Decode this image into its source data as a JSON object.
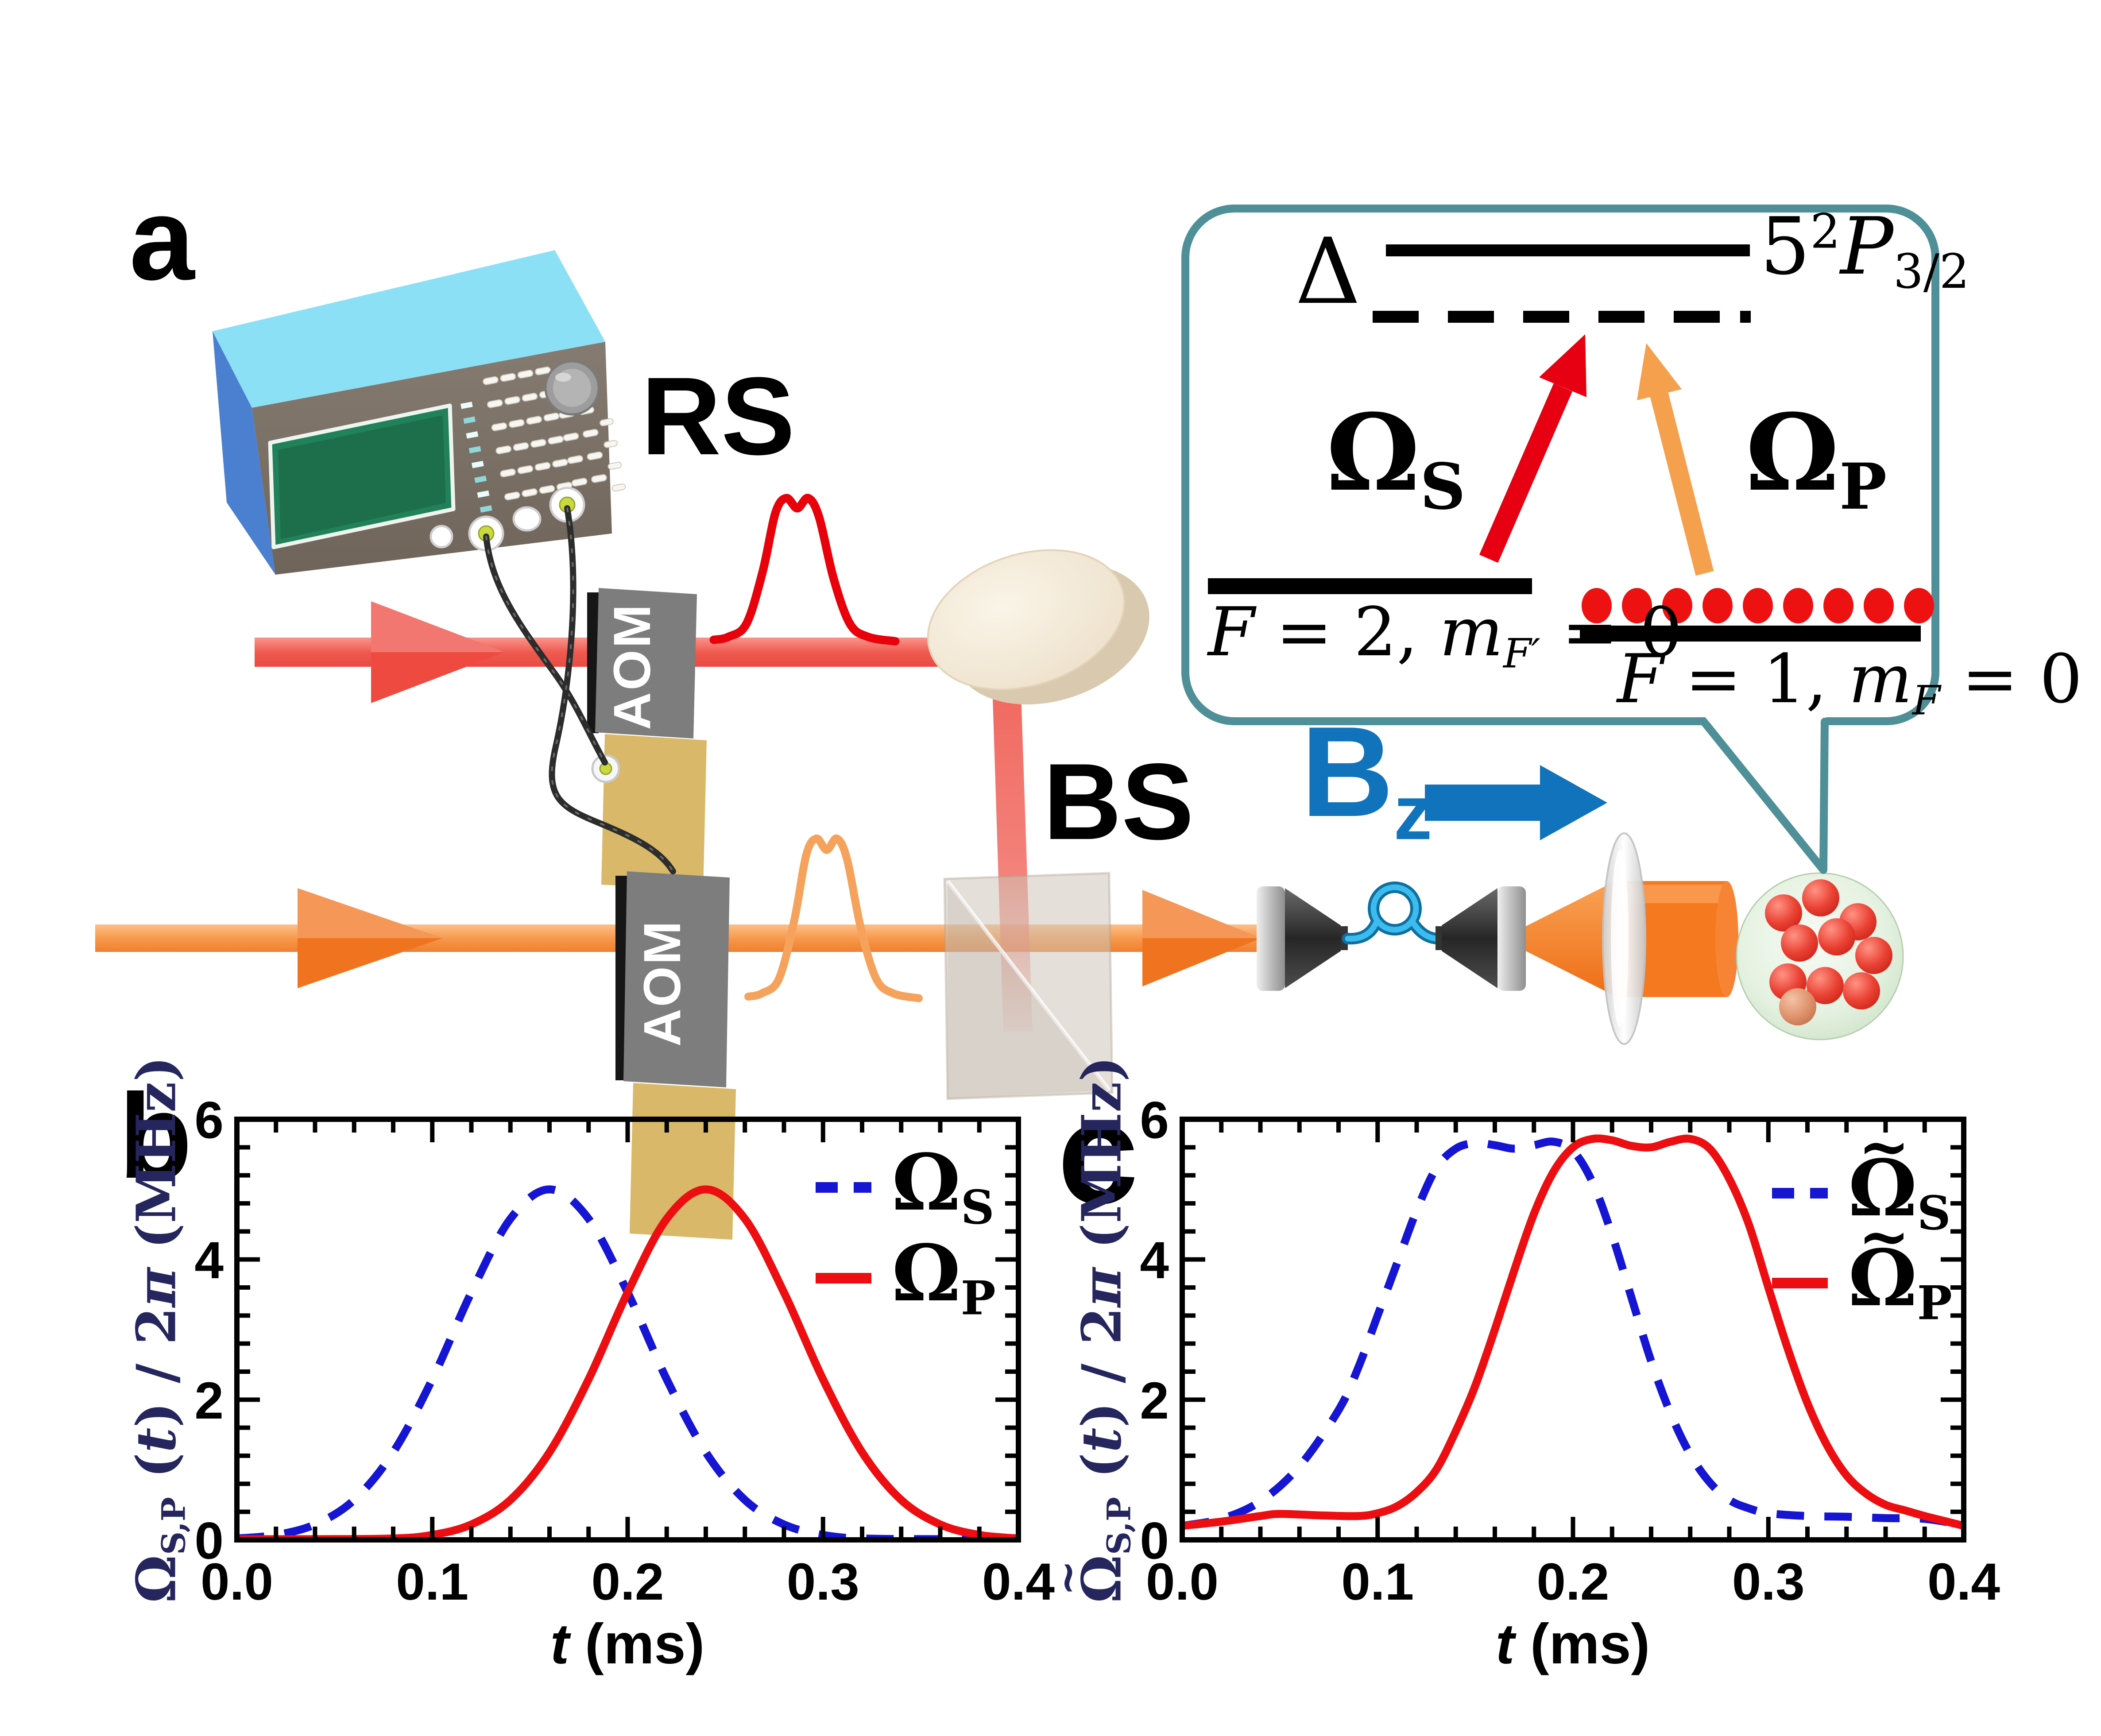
{
  "figure": {
    "panel_a_label": "a",
    "rs_label": "RS",
    "aom_label": "AOM",
    "bs_label": "BS",
    "bz_segs": [
      {
        "t": "B"
      },
      {
        "t": "z",
        "sub": 1
      }
    ],
    "inset": {
      "delta": "Δ",
      "excited_segs": [
        {
          "t": "5"
        },
        {
          "t": "2",
          "sup": 1
        },
        {
          "t": "P",
          "i": 1
        },
        {
          "t": "3/2",
          "sub": 1
        }
      ],
      "omega_s_segs": [
        {
          "t": "Ω"
        },
        {
          "t": "S",
          "sub": 1
        }
      ],
      "omega_p_segs": [
        {
          "t": "Ω"
        },
        {
          "t": "P",
          "sub": 1
        }
      ],
      "f2_segs": [
        {
          "t": "F",
          "i": 1
        },
        {
          "t": " = 2, "
        },
        {
          "t": "m",
          "i": 1
        },
        {
          "t": "F′",
          "sub": 1,
          "i": 1
        },
        {
          "t": " = 0"
        }
      ],
      "f1_segs": [
        {
          "t": "F",
          "i": 1
        },
        {
          "t": " = 1, "
        },
        {
          "t": "m",
          "i": 1
        },
        {
          "t": "F",
          "sub": 1,
          "i": 1
        },
        {
          "t": " = 0"
        }
      ],
      "atom_dots": 9
    },
    "pulse_shape": [
      [
        0,
        0.03
      ],
      [
        0.08,
        0.05
      ],
      [
        0.18,
        0.14
      ],
      [
        0.27,
        0.5
      ],
      [
        0.34,
        0.9
      ],
      [
        0.4,
        1.0
      ],
      [
        0.46,
        0.93
      ],
      [
        0.52,
        1.0
      ],
      [
        0.58,
        0.87
      ],
      [
        0.66,
        0.45
      ],
      [
        0.75,
        0.14
      ],
      [
        0.85,
        0.05
      ],
      [
        1.0,
        0.02
      ]
    ],
    "colors": {
      "teal": "#4f9098",
      "beam_red": "#ef5a50",
      "beam_orange": "#f79a4c",
      "pulse_red": "#e8000b",
      "pulse_orange": "#f5a35c",
      "bz_blue": "#1173bb",
      "fiber_blue": "#3cbcee",
      "curve_blue": "#1515d3",
      "curve_red": "#ed0e11"
    }
  },
  "chart_data": [
    {
      "panel_label": "b",
      "type": "line",
      "title": "",
      "xlabel_segs": [
        {
          "t": "t",
          "i": 1
        },
        {
          "t": " (ms)"
        }
      ],
      "ylabel_segs": [
        {
          "t": "Ω"
        },
        {
          "t": "S,P",
          "sub": 1
        },
        {
          "t": " ("
        },
        {
          "t": "t",
          "i": 1
        },
        {
          "t": ") / 2"
        },
        {
          "t": "π",
          "i": 1
        },
        {
          "t": " (MHz)"
        }
      ],
      "xlim": [
        0,
        0.4
      ],
      "ylim": [
        0,
        6
      ],
      "xticks": [
        [
          0,
          "0.0"
        ],
        [
          0.1,
          "0.1"
        ],
        [
          0.2,
          "0.2"
        ],
        [
          0.3,
          "0.3"
        ],
        [
          0.4,
          "0.4"
        ]
      ],
      "yticks": [
        [
          0,
          "0"
        ],
        [
          2,
          "2"
        ],
        [
          4,
          "4"
        ],
        [
          6,
          "6"
        ]
      ],
      "x_minor_step": 0.02,
      "y_minor_step": 0.4,
      "grid": false,
      "legend_position": "upper-right",
      "series": [
        {
          "label_segs": [
            {
              "t": "Ω"
            },
            {
              "t": "S",
              "sub": 1
            }
          ],
          "color": "#1515d3",
          "dashed": true,
          "points": [
            [
              0,
              0.02
            ],
            [
              0.02,
              0.07
            ],
            [
              0.04,
              0.22
            ],
            [
              0.06,
              0.57
            ],
            [
              0.08,
              1.25
            ],
            [
              0.1,
              2.29
            ],
            [
              0.12,
              3.53
            ],
            [
              0.14,
              4.58
            ],
            [
              0.16,
              5.0
            ],
            [
              0.18,
              4.58
            ],
            [
              0.2,
              3.53
            ],
            [
              0.22,
              2.29
            ],
            [
              0.24,
              1.25
            ],
            [
              0.26,
              0.57
            ],
            [
              0.28,
              0.22
            ],
            [
              0.3,
              0.07
            ],
            [
              0.32,
              0.02
            ],
            [
              0.36,
              0.01
            ],
            [
              0.4,
              0.01
            ]
          ]
        },
        {
          "label_segs": [
            {
              "t": "Ω"
            },
            {
              "t": "P",
              "sub": 1
            }
          ],
          "color": "#ed0e11",
          "dashed": false,
          "points": [
            [
              0,
              0.01
            ],
            [
              0.04,
              0.01
            ],
            [
              0.08,
              0.02
            ],
            [
              0.1,
              0.07
            ],
            [
              0.12,
              0.22
            ],
            [
              0.14,
              0.57
            ],
            [
              0.16,
              1.25
            ],
            [
              0.18,
              2.29
            ],
            [
              0.2,
              3.53
            ],
            [
              0.22,
              4.58
            ],
            [
              0.24,
              5.0
            ],
            [
              0.26,
              4.58
            ],
            [
              0.28,
              3.53
            ],
            [
              0.3,
              2.29
            ],
            [
              0.32,
              1.25
            ],
            [
              0.34,
              0.57
            ],
            [
              0.36,
              0.22
            ],
            [
              0.38,
              0.07
            ],
            [
              0.4,
              0.02
            ]
          ]
        }
      ]
    },
    {
      "panel_label": "c",
      "type": "line",
      "title": "",
      "xlabel_segs": [
        {
          "t": "t",
          "i": 1
        },
        {
          "t": " (ms)"
        }
      ],
      "ylabel_segs": [
        {
          "t": "Ω",
          "tld": 1
        },
        {
          "t": "S,P",
          "sub": 1
        },
        {
          "t": " ("
        },
        {
          "t": "t",
          "i": 1
        },
        {
          "t": ") / 2"
        },
        {
          "t": "π",
          "i": 1
        },
        {
          "t": " (MHz)"
        }
      ],
      "xlim": [
        0,
        0.4
      ],
      "ylim": [
        0,
        6
      ],
      "xticks": [
        [
          0,
          "0.0"
        ],
        [
          0.1,
          "0.1"
        ],
        [
          0.2,
          "0.2"
        ],
        [
          0.3,
          "0.3"
        ],
        [
          0.4,
          "0.4"
        ]
      ],
      "yticks": [
        [
          0,
          "0"
        ],
        [
          2,
          "2"
        ],
        [
          4,
          "4"
        ],
        [
          6,
          "6"
        ]
      ],
      "x_minor_step": 0.02,
      "y_minor_step": 0.4,
      "grid": false,
      "legend_position": "upper-right",
      "series": [
        {
          "label_segs": [
            {
              "t": "Ω",
              "tld": 1
            },
            {
              "t": "S",
              "sub": 1
            }
          ],
          "color": "#1515d3",
          "dashed": true,
          "points": [
            [
              0,
              0.2
            ],
            [
              0.02,
              0.3
            ],
            [
              0.04,
              0.55
            ],
            [
              0.06,
              1.05
            ],
            [
              0.08,
              1.85
            ],
            [
              0.09,
              2.45
            ],
            [
              0.1,
              3.2
            ],
            [
              0.11,
              3.95
            ],
            [
              0.12,
              4.7
            ],
            [
              0.13,
              5.3
            ],
            [
              0.14,
              5.58
            ],
            [
              0.15,
              5.66
            ],
            [
              0.16,
              5.63
            ],
            [
              0.17,
              5.58
            ],
            [
              0.18,
              5.63
            ],
            [
              0.19,
              5.68
            ],
            [
              0.2,
              5.55
            ],
            [
              0.21,
              5.1
            ],
            [
              0.22,
              4.35
            ],
            [
              0.23,
              3.45
            ],
            [
              0.24,
              2.55
            ],
            [
              0.25,
              1.8
            ],
            [
              0.26,
              1.22
            ],
            [
              0.27,
              0.82
            ],
            [
              0.28,
              0.57
            ],
            [
              0.29,
              0.45
            ],
            [
              0.3,
              0.38
            ],
            [
              0.32,
              0.34
            ],
            [
              0.34,
              0.33
            ],
            [
              0.36,
              0.31
            ],
            [
              0.38,
              0.3
            ],
            [
              0.4,
              0.21
            ]
          ]
        },
        {
          "label_segs": [
            {
              "t": "Ω",
              "tld": 1
            },
            {
              "t": "P",
              "sub": 1
            }
          ],
          "color": "#ed0e11",
          "dashed": false,
          "points": [
            [
              0,
              0.2
            ],
            [
              0.02,
              0.26
            ],
            [
              0.04,
              0.34
            ],
            [
              0.05,
              0.37
            ],
            [
              0.07,
              0.35
            ],
            [
              0.09,
              0.34
            ],
            [
              0.1,
              0.38
            ],
            [
              0.11,
              0.48
            ],
            [
              0.12,
              0.68
            ],
            [
              0.13,
              1.0
            ],
            [
              0.14,
              1.55
            ],
            [
              0.15,
              2.2
            ],
            [
              0.16,
              3.0
            ],
            [
              0.17,
              3.85
            ],
            [
              0.18,
              4.65
            ],
            [
              0.19,
              5.25
            ],
            [
              0.2,
              5.6
            ],
            [
              0.21,
              5.72
            ],
            [
              0.22,
              5.7
            ],
            [
              0.23,
              5.62
            ],
            [
              0.24,
              5.6
            ],
            [
              0.25,
              5.68
            ],
            [
              0.26,
              5.72
            ],
            [
              0.27,
              5.58
            ],
            [
              0.28,
              5.15
            ],
            [
              0.29,
              4.5
            ],
            [
              0.3,
              3.6
            ],
            [
              0.31,
              2.72
            ],
            [
              0.32,
              1.95
            ],
            [
              0.33,
              1.35
            ],
            [
              0.34,
              0.92
            ],
            [
              0.35,
              0.66
            ],
            [
              0.36,
              0.5
            ],
            [
              0.37,
              0.42
            ],
            [
              0.38,
              0.34
            ],
            [
              0.39,
              0.27
            ],
            [
              0.4,
              0.2
            ]
          ]
        }
      ]
    }
  ]
}
